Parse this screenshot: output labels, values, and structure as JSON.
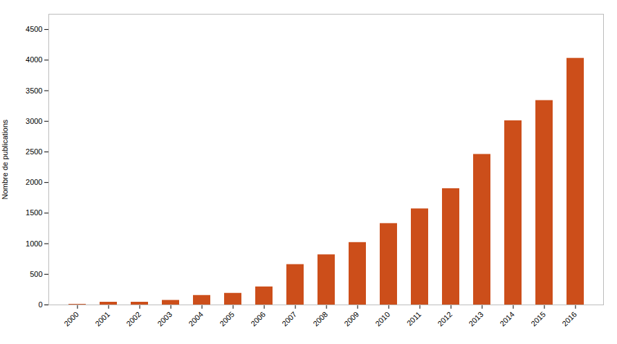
{
  "chart_data": {
    "type": "bar",
    "categories": [
      "2000",
      "2001",
      "2002",
      "2003",
      "2004",
      "2005",
      "2006",
      "2007",
      "2008",
      "2009",
      "2010",
      "2011",
      "2012",
      "2013",
      "2014",
      "2015",
      "2016"
    ],
    "values": [
      10,
      45,
      45,
      75,
      155,
      190,
      295,
      660,
      820,
      1020,
      1330,
      1570,
      1900,
      2460,
      3010,
      3340,
      4030
    ],
    "color": "#CC4E1A",
    "ylabel": "Nombre de publications",
    "ylim": [
      0,
      4750
    ],
    "yticks": [
      0,
      500,
      1000,
      1500,
      2000,
      2500,
      3000,
      3500,
      4000,
      4500
    ],
    "grid": false
  }
}
